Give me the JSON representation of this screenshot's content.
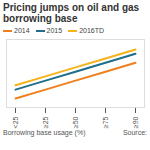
{
  "chart_data": {
    "type": "line",
    "title": "Pricing jumps on oil and gas borrowing base",
    "x_label": "Borrowing base usage (%)",
    "source": "Source:",
    "categories": [
      "<25",
      "≥25",
      "≥50",
      "≥75",
      "≥90"
    ],
    "series": [
      {
        "name": "2014",
        "color": "#f07f1e",
        "values": [
          175,
          200,
          225,
          250,
          275
        ]
      },
      {
        "name": "2015",
        "color": "#1f6e8c",
        "values": [
          200,
          225,
          250,
          275,
          300
        ]
      },
      {
        "name": "2016TD",
        "color": "#f5b21a",
        "values": [
          212,
          237,
          262,
          287,
          312
        ]
      }
    ],
    "ylim": [
      150,
      340
    ],
    "tick_labels": "x",
    "grid": false
  }
}
